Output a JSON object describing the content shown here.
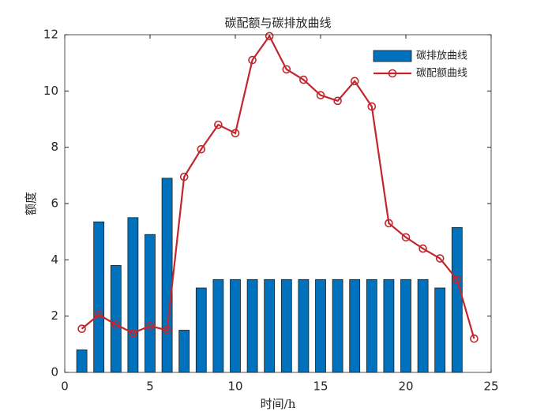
{
  "chart_data": {
    "type": "bar-line",
    "title": "碳配额与碳排放曲线",
    "xlabel": "时间/h",
    "ylabel": "额度",
    "xlim": [
      0,
      25
    ],
    "xticks": [
      0,
      5,
      10,
      15,
      20,
      25
    ],
    "ylim": [
      0,
      12
    ],
    "yticks": [
      0,
      2,
      4,
      6,
      8,
      10,
      12
    ],
    "legend": "northeast",
    "series": [
      {
        "name": "碳排放曲线",
        "type": "bar",
        "color": "#0072bd",
        "x": [
          1,
          2,
          3,
          4,
          5,
          6,
          7,
          8,
          9,
          10,
          11,
          12,
          13,
          14,
          15,
          16,
          17,
          18,
          19,
          20,
          21,
          22,
          23
        ],
        "values": [
          0.8,
          5.35,
          3.8,
          5.5,
          4.9,
          6.9,
          1.5,
          3.0,
          3.3,
          3.3,
          3.3,
          3.3,
          3.3,
          3.3,
          3.3,
          3.3,
          3.3,
          3.3,
          3.3,
          3.3,
          3.3,
          3.0,
          5.15
        ]
      },
      {
        "name": "碳配额曲线",
        "type": "line",
        "color": "#c1272d",
        "x": [
          1,
          2,
          3,
          4,
          5,
          6,
          7,
          8,
          9,
          10,
          11,
          12,
          13,
          14,
          15,
          16,
          17,
          18,
          19,
          20,
          21,
          22,
          23,
          24
        ],
        "values": [
          1.55,
          2.05,
          1.7,
          1.4,
          1.65,
          1.5,
          6.95,
          7.93,
          8.8,
          8.5,
          11.1,
          11.95,
          10.77,
          10.4,
          9.85,
          9.65,
          10.35,
          9.45,
          5.3,
          4.8,
          4.4,
          4.05,
          3.3,
          1.2
        ]
      }
    ]
  }
}
